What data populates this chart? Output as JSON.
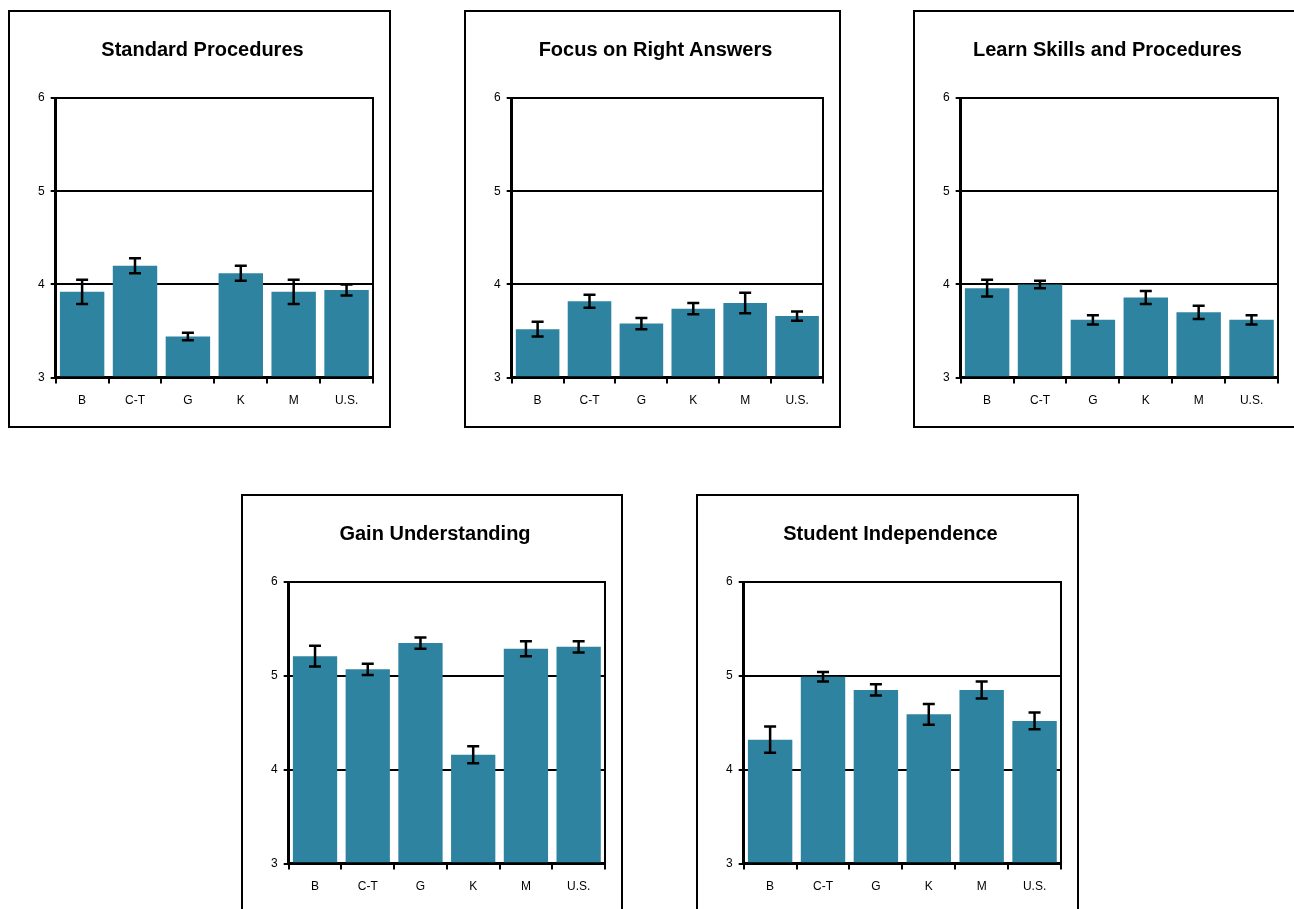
{
  "chart_data": [
    {
      "type": "bar",
      "title": "Standard Procedures",
      "categories": [
        "B",
        "C-T",
        "G",
        "K",
        "M",
        "U.S."
      ],
      "values": [
        3.92,
        4.2,
        3.44,
        4.12,
        3.92,
        3.94
      ],
      "errors": [
        0.13,
        0.08,
        0.04,
        0.08,
        0.13,
        0.06
      ],
      "color": "#2e84a0",
      "ylim": [
        3,
        6
      ],
      "yticks": [
        3,
        4,
        5,
        6
      ],
      "grid": "y",
      "legend": false
    },
    {
      "type": "bar",
      "title": "Focus on Right Answers",
      "categories": [
        "B",
        "C-T",
        "G",
        "K",
        "M",
        "U.S."
      ],
      "values": [
        3.52,
        3.82,
        3.58,
        3.74,
        3.8,
        3.66
      ],
      "errors": [
        0.08,
        0.07,
        0.06,
        0.06,
        0.11,
        0.05
      ],
      "color": "#2e84a0",
      "ylim": [
        3,
        6
      ],
      "yticks": [
        3,
        4,
        5,
        6
      ],
      "grid": "y",
      "legend": false
    },
    {
      "type": "bar",
      "title": "Learn Skills and Procedures",
      "categories": [
        "B",
        "C-T",
        "G",
        "K",
        "M",
        "U.S."
      ],
      "values": [
        3.96,
        4.0,
        3.62,
        3.86,
        3.7,
        3.62
      ],
      "errors": [
        0.09,
        0.04,
        0.05,
        0.07,
        0.07,
        0.05
      ],
      "color": "#2e84a0",
      "ylim": [
        3,
        6
      ],
      "yticks": [
        3,
        4,
        5,
        6
      ],
      "grid": "y",
      "legend": false
    },
    {
      "type": "bar",
      "title": "Gain Understanding",
      "categories": [
        "B",
        "C-T",
        "G",
        "K",
        "M",
        "U.S."
      ],
      "values": [
        5.21,
        5.07,
        5.35,
        4.16,
        5.29,
        5.31
      ],
      "errors": [
        0.11,
        0.06,
        0.06,
        0.09,
        0.08,
        0.06
      ],
      "color": "#2e84a0",
      "ylim": [
        3,
        6
      ],
      "yticks": [
        3,
        4,
        5,
        6
      ],
      "grid": "y",
      "legend": false
    },
    {
      "type": "bar",
      "title": "Student Independence",
      "categories": [
        "B",
        "C-T",
        "G",
        "K",
        "M",
        "U.S."
      ],
      "values": [
        4.32,
        4.99,
        4.85,
        4.59,
        4.85,
        4.52
      ],
      "errors": [
        0.14,
        0.05,
        0.06,
        0.11,
        0.09,
        0.09
      ],
      "color": "#2e84a0",
      "ylim": [
        3,
        6
      ],
      "yticks": [
        3,
        4,
        5,
        6
      ],
      "grid": "y",
      "legend": false
    }
  ]
}
